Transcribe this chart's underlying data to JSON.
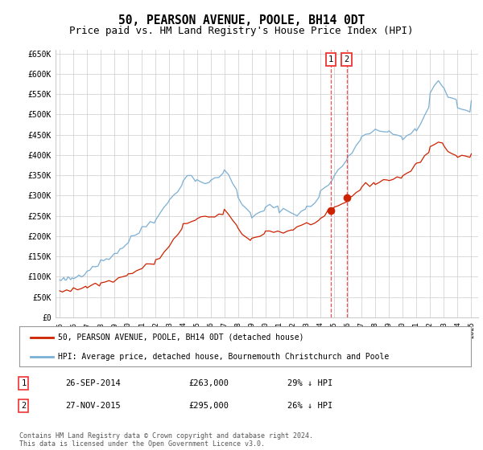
{
  "title": "50, PEARSON AVENUE, POOLE, BH14 0DT",
  "subtitle": "Price paid vs. HM Land Registry's House Price Index (HPI)",
  "ylim": [
    0,
    660000
  ],
  "yticks": [
    0,
    50000,
    100000,
    150000,
    200000,
    250000,
    300000,
    350000,
    400000,
    450000,
    500000,
    550000,
    600000,
    650000
  ],
  "ytick_labels": [
    "£0",
    "£50K",
    "£100K",
    "£150K",
    "£200K",
    "£250K",
    "£300K",
    "£350K",
    "£400K",
    "£450K",
    "£500K",
    "£550K",
    "£600K",
    "£650K"
  ],
  "xlim_start": 1994.7,
  "xlim_end": 2025.5,
  "hpi_color": "#7bafd4",
  "property_color": "#cc2200",
  "vline_color": "#ee3333",
  "purchase1_date": 2014.74,
  "purchase1_price": 263000,
  "purchase2_date": 2015.91,
  "purchase2_price": 295000,
  "legend_property": "50, PEARSON AVENUE, POOLE, BH14 0DT (detached house)",
  "legend_hpi": "HPI: Average price, detached house, Bournemouth Christchurch and Poole",
  "table_row1": [
    "1",
    "26-SEP-2014",
    "£263,000",
    "29% ↓ HPI"
  ],
  "table_row2": [
    "2",
    "27-NOV-2015",
    "£295,000",
    "26% ↓ HPI"
  ],
  "footer": "Contains HM Land Registry data © Crown copyright and database right 2024.\nThis data is licensed under the Open Government Licence v3.0.",
  "background_color": "#ffffff",
  "grid_color": "#cccccc",
  "title_fontsize": 10.5,
  "subtitle_fontsize": 9,
  "hpi_x": [
    1995.0,
    1995.1,
    1995.2,
    1995.3,
    1995.4,
    1995.5,
    1995.6,
    1995.7,
    1995.8,
    1995.9,
    1996.0,
    1996.2,
    1996.4,
    1996.6,
    1996.8,
    1997.0,
    1997.2,
    1997.4,
    1997.6,
    1997.8,
    1998.0,
    1998.2,
    1998.4,
    1998.6,
    1998.8,
    1999.0,
    1999.2,
    1999.4,
    1999.6,
    1999.8,
    2000.0,
    2000.2,
    2000.5,
    2000.8,
    2001.0,
    2001.3,
    2001.6,
    2001.9,
    2002.0,
    2002.3,
    2002.6,
    2002.9,
    2003.0,
    2003.3,
    2003.6,
    2003.9,
    2004.0,
    2004.3,
    2004.6,
    2004.9,
    2005.0,
    2005.3,
    2005.6,
    2005.9,
    2006.0,
    2006.3,
    2006.6,
    2006.9,
    2007.0,
    2007.3,
    2007.6,
    2007.9,
    2008.0,
    2008.3,
    2008.6,
    2008.9,
    2009.0,
    2009.3,
    2009.6,
    2009.9,
    2010.0,
    2010.3,
    2010.6,
    2010.9,
    2011.0,
    2011.3,
    2011.6,
    2011.9,
    2012.0,
    2012.3,
    2012.6,
    2012.9,
    2013.0,
    2013.3,
    2013.6,
    2013.9,
    2014.0,
    2014.3,
    2014.6,
    2014.9,
    2015.0,
    2015.3,
    2015.6,
    2015.9,
    2016.0,
    2016.3,
    2016.6,
    2016.9,
    2017.0,
    2017.3,
    2017.6,
    2017.9,
    2018.0,
    2018.3,
    2018.6,
    2018.9,
    2019.0,
    2019.3,
    2019.6,
    2019.9,
    2020.0,
    2020.3,
    2020.6,
    2020.9,
    2021.0,
    2021.3,
    2021.6,
    2021.9,
    2022.0,
    2022.3,
    2022.6,
    2022.9,
    2023.0,
    2023.3,
    2023.6,
    2023.9,
    2024.0,
    2024.3,
    2024.6,
    2024.9,
    2025.0
  ],
  "hpi_y": [
    90000,
    91000,
    91500,
    92000,
    92500,
    93000,
    93500,
    94000,
    94500,
    95000,
    97000,
    100000,
    103000,
    107000,
    111000,
    116000,
    120000,
    124000,
    128000,
    132000,
    136000,
    140000,
    144000,
    148000,
    152000,
    157000,
    162000,
    167000,
    173000,
    179000,
    186000,
    193000,
    202000,
    212000,
    220000,
    228000,
    235000,
    240000,
    245000,
    255000,
    268000,
    282000,
    290000,
    302000,
    315000,
    328000,
    338000,
    345000,
    348000,
    342000,
    338000,
    335000,
    332000,
    330000,
    333000,
    340000,
    348000,
    356000,
    362000,
    348000,
    332000,
    315000,
    300000,
    282000,
    265000,
    252000,
    245000,
    250000,
    258000,
    265000,
    270000,
    272000,
    270000,
    268000,
    268000,
    265000,
    262000,
    258000,
    255000,
    258000,
    262000,
    265000,
    268000,
    275000,
    285000,
    298000,
    308000,
    318000,
    328000,
    338000,
    348000,
    360000,
    375000,
    388000,
    398000,
    410000,
    422000,
    435000,
    445000,
    452000,
    458000,
    462000,
    465000,
    462000,
    458000,
    455000,
    452000,
    450000,
    448000,
    446000,
    445000,
    448000,
    452000,
    455000,
    460000,
    475000,
    498000,
    522000,
    548000,
    568000,
    580000,
    572000,
    560000,
    548000,
    538000,
    528000,
    520000,
    515000,
    510000,
    508000,
    540000
  ],
  "prop_x": [
    1995.0,
    1995.2,
    1995.5,
    1995.8,
    1996.0,
    1996.3,
    1996.6,
    1996.9,
    1997.0,
    1997.3,
    1997.6,
    1997.9,
    1998.0,
    1998.3,
    1998.6,
    1998.9,
    1999.0,
    1999.3,
    1999.6,
    1999.9,
    2000.0,
    2000.3,
    2000.6,
    2000.9,
    2001.0,
    2001.3,
    2001.6,
    2001.9,
    2002.0,
    2002.3,
    2002.6,
    2002.9,
    2003.0,
    2003.3,
    2003.6,
    2003.9,
    2004.0,
    2004.3,
    2004.6,
    2004.9,
    2005.0,
    2005.3,
    2005.6,
    2005.9,
    2006.0,
    2006.3,
    2006.6,
    2006.9,
    2007.0,
    2007.3,
    2007.6,
    2007.9,
    2008.0,
    2008.3,
    2008.6,
    2008.9,
    2009.0,
    2009.3,
    2009.6,
    2009.9,
    2010.0,
    2010.3,
    2010.6,
    2010.9,
    2011.0,
    2011.3,
    2011.6,
    2011.9,
    2012.0,
    2012.3,
    2012.6,
    2012.9,
    2013.0,
    2013.3,
    2013.6,
    2013.9,
    2014.0,
    2014.3,
    2014.6,
    2014.9,
    2015.0,
    2015.3,
    2015.6,
    2015.9,
    2016.0,
    2016.3,
    2016.6,
    2016.9,
    2017.0,
    2017.3,
    2017.6,
    2017.9,
    2018.0,
    2018.3,
    2018.6,
    2018.9,
    2019.0,
    2019.3,
    2019.6,
    2019.9,
    2020.0,
    2020.3,
    2020.6,
    2020.9,
    2021.0,
    2021.3,
    2021.6,
    2021.9,
    2022.0,
    2022.3,
    2022.6,
    2022.9,
    2023.0,
    2023.3,
    2023.6,
    2023.9,
    2024.0,
    2024.3,
    2024.6,
    2024.9,
    2025.0
  ],
  "prop_y": [
    65000,
    65500,
    66000,
    66500,
    68000,
    70000,
    72000,
    74000,
    76000,
    78000,
    80000,
    82000,
    84000,
    86000,
    88000,
    90000,
    93000,
    96000,
    99000,
    102000,
    106000,
    110000,
    114000,
    118000,
    122000,
    126000,
    130000,
    134000,
    140000,
    148000,
    158000,
    168000,
    178000,
    190000,
    202000,
    215000,
    225000,
    232000,
    238000,
    242000,
    245000,
    248000,
    248000,
    246000,
    245000,
    247000,
    250000,
    254000,
    258000,
    252000,
    242000,
    230000,
    218000,
    205000,
    195000,
    188000,
    195000,
    200000,
    204000,
    207000,
    210000,
    212000,
    213000,
    212000,
    210000,
    210000,
    212000,
    215000,
    218000,
    222000,
    225000,
    228000,
    230000,
    232000,
    235000,
    238000,
    242000,
    248000,
    255000,
    262000,
    268000,
    272000,
    278000,
    285000,
    292000,
    300000,
    308000,
    315000,
    320000,
    325000,
    328000,
    330000,
    332000,
    334000,
    336000,
    338000,
    340000,
    342000,
    344000,
    345000,
    348000,
    355000,
    362000,
    370000,
    378000,
    388000,
    398000,
    408000,
    418000,
    428000,
    432000,
    428000,
    420000,
    412000,
    404000,
    400000,
    396000,
    394000,
    396000,
    398000,
    400000
  ]
}
